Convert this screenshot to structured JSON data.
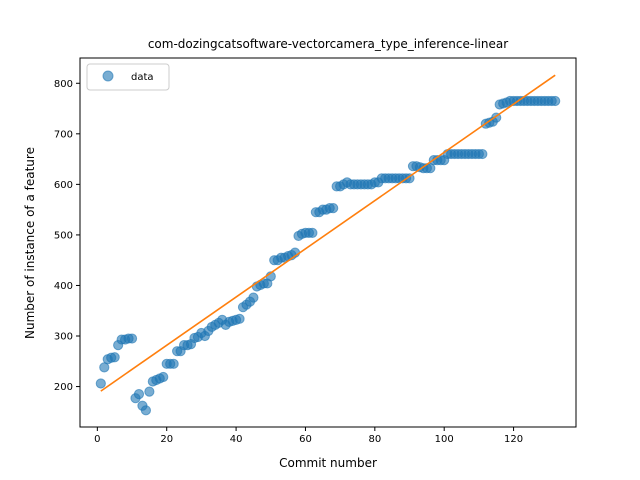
{
  "chart_data": {
    "type": "scatter",
    "title": "com-dozingcatsoftware-vectorcamera_type_inference-linear",
    "xlabel": "Commit number",
    "ylabel": "Number of instance of a feature",
    "xlim": [
      -5,
      138
    ],
    "ylim": [
      120,
      850
    ],
    "xticks": [
      0,
      20,
      40,
      60,
      80,
      100,
      120
    ],
    "yticks": [
      200,
      300,
      400,
      500,
      600,
      700,
      800
    ],
    "grid": false,
    "legend": {
      "placement": "top-left",
      "entries": [
        "data"
      ]
    },
    "series": [
      {
        "name": "data",
        "kind": "scatter",
        "color": "#1f77b4",
        "x": [
          1,
          2,
          3,
          4,
          5,
          6,
          7,
          8,
          9,
          10,
          11,
          12,
          13,
          14,
          15,
          16,
          17,
          18,
          19,
          20,
          21,
          22,
          23,
          24,
          25,
          26,
          27,
          28,
          29,
          30,
          31,
          32,
          33,
          34,
          35,
          36,
          37,
          38,
          39,
          40,
          41,
          42,
          43,
          44,
          45,
          46,
          47,
          48,
          49,
          50,
          51,
          52,
          53,
          54,
          55,
          56,
          57,
          58,
          59,
          60,
          61,
          62,
          63,
          64,
          65,
          66,
          67,
          68,
          69,
          70,
          71,
          72,
          73,
          74,
          75,
          76,
          77,
          78,
          79,
          80,
          81,
          82,
          83,
          84,
          85,
          86,
          87,
          88,
          89,
          90,
          91,
          92,
          93,
          94,
          95,
          96,
          97,
          98,
          99,
          100,
          101,
          102,
          103,
          104,
          105,
          106,
          107,
          108,
          109,
          110,
          111,
          112,
          113,
          114,
          115,
          116,
          117,
          118,
          119,
          120,
          121,
          122,
          123,
          124,
          125,
          126,
          127,
          128,
          129,
          130,
          131,
          132
        ],
        "y": [
          206,
          238,
          254,
          257,
          258,
          282,
          293,
          293,
          295,
          295,
          177,
          185,
          162,
          153,
          190,
          210,
          213,
          216,
          219,
          245,
          245,
          245,
          270,
          270,
          282,
          282,
          284,
          296,
          298,
          306,
          300,
          310,
          318,
          322,
          326,
          332,
          322,
          328,
          330,
          332,
          334,
          357,
          362,
          368,
          376,
          398,
          401,
          404,
          404,
          418,
          450,
          450,
          455,
          455,
          458,
          460,
          465,
          498,
          502,
          504,
          504,
          504,
          545,
          545,
          550,
          550,
          553,
          553,
          596,
          596,
          600,
          604,
          600,
          600,
          600,
          600,
          600,
          600,
          600,
          604,
          604,
          612,
          612,
          612,
          612,
          612,
          612,
          612,
          612,
          612,
          636,
          636,
          634,
          632,
          632,
          632,
          648,
          648,
          648,
          648,
          660,
          660,
          660,
          660,
          660,
          660,
          660,
          660,
          660,
          660,
          660,
          720,
          722,
          724,
          732,
          758,
          760,
          762,
          765,
          765,
          765,
          765,
          765,
          765,
          765,
          765,
          765,
          765,
          765,
          765,
          765,
          765
        ]
      },
      {
        "name": "",
        "kind": "line",
        "color": "#ff7f0e",
        "x": [
          1,
          132
        ],
        "y": [
          191,
          816
        ]
      }
    ]
  }
}
